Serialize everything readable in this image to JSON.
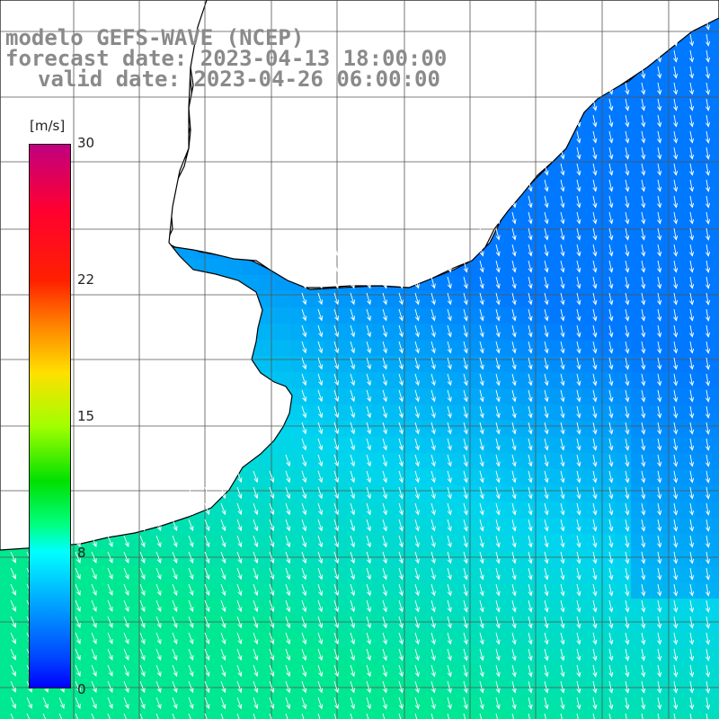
{
  "title": {
    "line1": "modelo GEFS-WAVE (NCEP)",
    "line2": "forecast date: 2023-04-13 18:00:00",
    "line3": "valid date: 2023-04-26 06:00:00"
  },
  "colorbar": {
    "unit": "[m/s]",
    "ticks": [
      "30",
      "22",
      "15",
      "8",
      "0"
    ],
    "range": [
      0,
      30
    ]
  },
  "map": {
    "variable": "wind speed and direction",
    "colors": {
      "land": "#ffffff",
      "coast": "#000000",
      "grid": "#555555",
      "arrow": "#ffffff",
      "low_speed": "#0078ff",
      "mid_speed": "#00d4f0",
      "high_speed": "#00e890"
    }
  }
}
